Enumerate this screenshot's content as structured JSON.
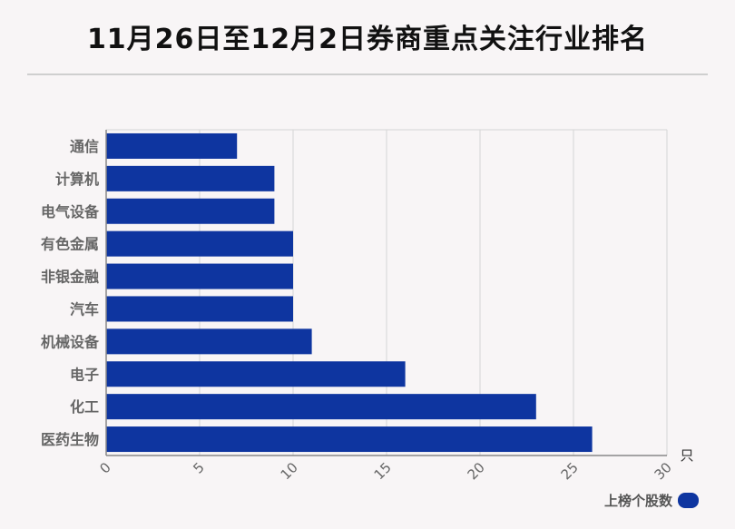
{
  "title": "11月26日至12月2日券商重点关注行业排名",
  "colors": {
    "bar": "#0e35a0",
    "grid": "#d5d5d5",
    "axis": "#888888"
  },
  "chart_data": {
    "type": "bar",
    "orientation": "horizontal",
    "categories": [
      "通信",
      "计算机",
      "电气设备",
      "有色金属",
      "非银金融",
      "汽车",
      "机械设备",
      "电子",
      "化工",
      "医药生物"
    ],
    "series": [
      {
        "name": "上榜个股数",
        "values": [
          7,
          9,
          9,
          10,
          10,
          10,
          11,
          16,
          23,
          26
        ]
      }
    ],
    "xlim": [
      0,
      30
    ],
    "xticks": [
      0,
      5,
      10,
      15,
      20,
      25,
      30
    ],
    "xunit": "只",
    "grid": true,
    "legend": "bottom-right"
  }
}
